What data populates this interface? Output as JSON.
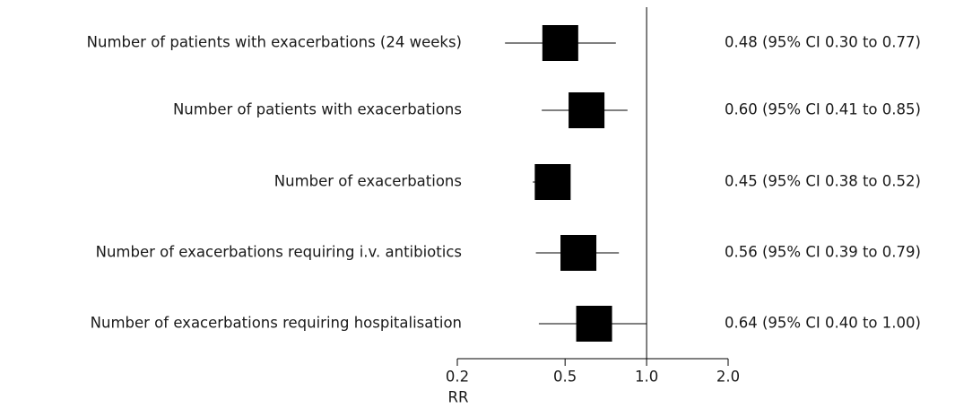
{
  "chart_data": {
    "type": "forest",
    "categories": [
      "Number of patients with exacerbations (24 weeks)",
      "Number of patients with exacerbations",
      "Number of exacerbations",
      "Number of exacerbations requiring i.v. antibiotics",
      "Number of exacerbations requiring hospitalisation"
    ],
    "values": [
      0.48,
      0.6,
      0.45,
      0.56,
      0.64
    ],
    "ci_low": [
      0.3,
      0.41,
      0.38,
      0.39,
      0.4
    ],
    "ci_high": [
      0.77,
      0.85,
      0.52,
      0.79,
      1.0
    ],
    "value_labels": [
      "0.48 (95% CI 0.30 to 0.77)",
      "0.60 (95% CI 0.41 to 0.85)",
      "0.45 (95% CI 0.38 to 0.52)",
      "0.56 (95% CI 0.39 to 0.79)",
      "0.64 (95% CI 0.40 to 1.00)"
    ],
    "color": "#000000",
    "x_label": "RR",
    "xscale": "log",
    "xlim": [
      0.2,
      2.0
    ],
    "xticks": [
      0.2,
      0.5,
      {
        "value": 1.0,
        "label": "1.0"
      },
      {
        "value": 2.0,
        "label": "2.0"
      }
    ],
    "reference_line": 1.0
  }
}
